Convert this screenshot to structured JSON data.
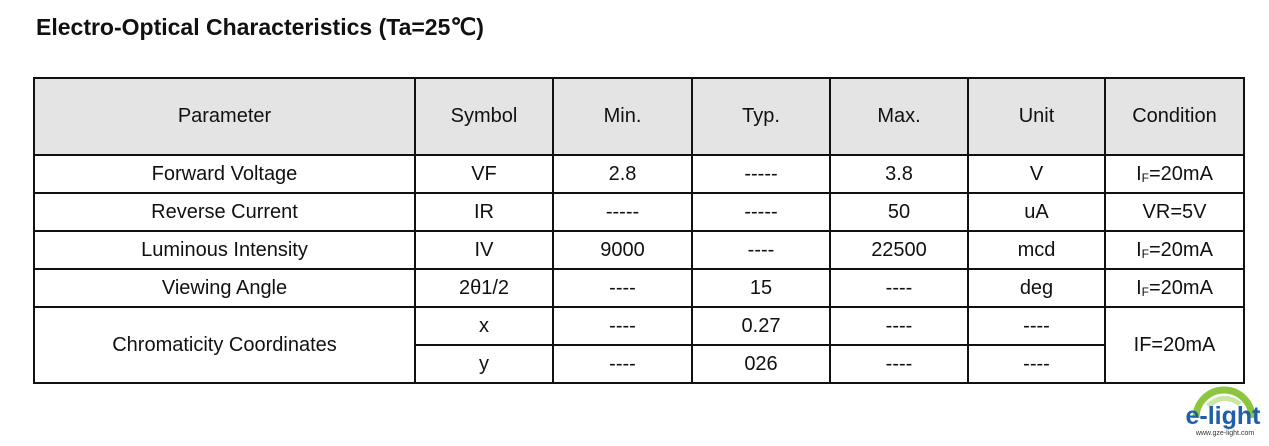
{
  "title": "Electro-Optical Characteristics (Ta=25℃)",
  "headers": [
    "Parameter",
    "Symbol",
    "Min.",
    "Typ.",
    "Max.",
    "Unit",
    "Condition"
  ],
  "rows": [
    {
      "parameter": "Forward Voltage",
      "symbol": "VF",
      "min": "2.8",
      "typ": "-----",
      "max": "3.8",
      "unit": "V",
      "condition": {
        "main": "I",
        "sub": "F",
        "rest": "=20mA"
      }
    },
    {
      "parameter": "Reverse Current",
      "symbol": "IR",
      "min": "-----",
      "typ": "-----",
      "max": "50",
      "unit": "uA",
      "condition": {
        "main": "VR=5V",
        "sub": "",
        "rest": ""
      }
    },
    {
      "parameter": "Luminous Intensity",
      "symbol": "IV",
      "min": "9000",
      "typ": "----",
      "max": "22500",
      "unit": "mcd",
      "condition": {
        "main": "I",
        "sub": "F",
        "rest": "=20mA"
      }
    },
    {
      "parameter": "Viewing Angle",
      "symbol": "2θ1/2",
      "min": "----",
      "typ": "15",
      "max": "----",
      "unit": "deg",
      "condition": {
        "main": "I",
        "sub": "F",
        "rest": "=20mA"
      }
    }
  ],
  "chromaticity": {
    "parameter": "Chromaticity Coordinates",
    "condition": "IF=20mA",
    "sub_rows": [
      {
        "symbol": "x",
        "min": "----",
        "typ": "0.27",
        "max": "----",
        "unit": "----"
      },
      {
        "symbol": "y",
        "min": "----",
        "typ": "026",
        "max": "----",
        "unit": "----"
      }
    ]
  },
  "logo": {
    "text": "e-light",
    "url_text": "www.gze-light.com",
    "colors": {
      "green": "#7cc242",
      "blue": "#1f5fa8"
    }
  }
}
